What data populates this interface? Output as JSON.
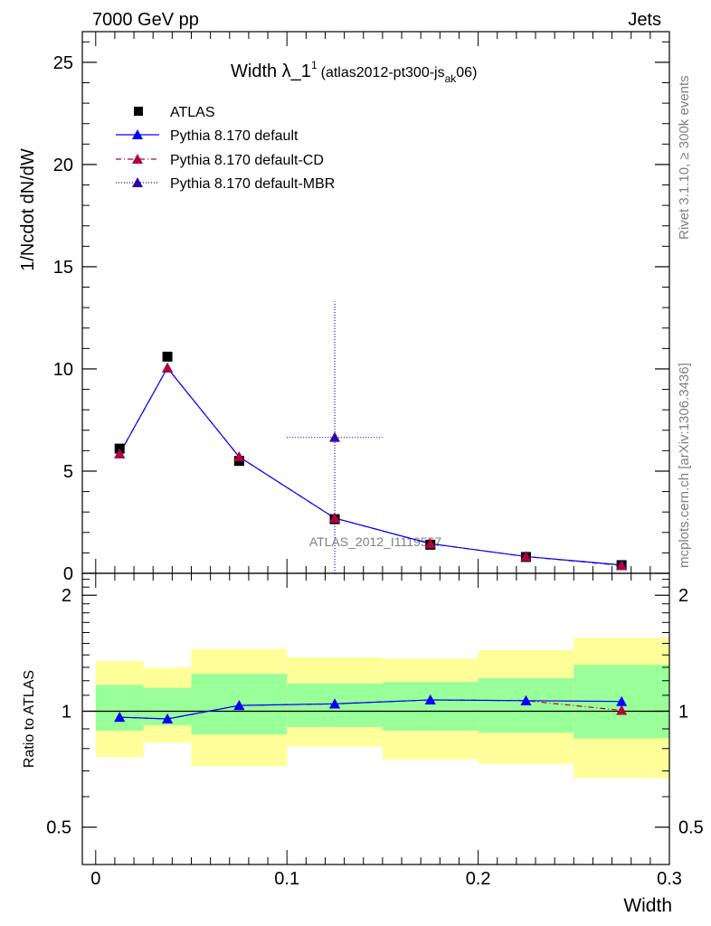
{
  "header": {
    "left": "7000 GeV pp",
    "right": "Jets"
  },
  "side": {
    "rivet": "Rivet 3.1.10, ≥ 300k events",
    "mcplots": "mcplots.cern.ch [arXiv:1306.3436]"
  },
  "watermark": "ATLAS_2012_I1119557",
  "chart_data": [
    {
      "type": "scatter",
      "title": "Width λ_1¹ (atlas2012-pt300-js_ak 06)",
      "title_parts": {
        "main": "Width λ_1",
        "sup": "1",
        "paren": "(atlas2012-pt300-js",
        "sub": "ak",
        "tail": "06)"
      },
      "ylabel": "1/Ncdot dN/dW",
      "xlabel": "Width",
      "xlim": [
        -0.007,
        0.3
      ],
      "ylim": [
        0,
        26.5
      ],
      "yticks": [
        0,
        5,
        10,
        15,
        20,
        25
      ],
      "ytick_labels": [
        "0",
        "5",
        "10",
        "15",
        "20",
        "25"
      ],
      "xticks": [
        0,
        0.1,
        0.2,
        0.3
      ],
      "xtick_labels": [
        "0",
        "0.1",
        "0.2",
        "0.3"
      ],
      "legend": [
        "ATLAS",
        "Pythia 8.170 default",
        "Pythia 8.170 default-CD",
        "Pythia 8.170 default-MBR"
      ],
      "legend_position": "top-left",
      "series": [
        {
          "name": "ATLAS",
          "color": "#000000",
          "marker": "square",
          "x": [
            0.0125,
            0.0375,
            0.075,
            0.125,
            0.175,
            0.225,
            0.275
          ],
          "values": [
            6.1,
            10.6,
            5.5,
            2.65,
            1.4,
            0.8,
            0.4
          ]
        },
        {
          "name": "Pythia 8.170 default",
          "color": "#0000ff",
          "marker": "triangle",
          "line": "solid",
          "x": [
            0.0125,
            0.0375,
            0.075,
            0.125,
            0.175,
            0.225,
            0.275
          ],
          "values": [
            5.85,
            10.05,
            5.7,
            2.7,
            1.45,
            0.82,
            0.41
          ]
        },
        {
          "name": "Pythia 8.170 default-CD",
          "color": "#b0003a",
          "marker": "triangle",
          "line": "dashdot",
          "x": [
            0.0125,
            0.0375,
            0.075,
            0.125,
            0.175,
            0.225,
            0.275
          ],
          "values": [
            5.85,
            10.05,
            5.7,
            2.7,
            1.45,
            0.82,
            0.38
          ]
        },
        {
          "name": "Pythia 8.170 default-MBR",
          "color": "#3300aa",
          "marker": "triangle",
          "line": "dotted",
          "x": [
            0.125
          ],
          "values": [
            6.65
          ],
          "xerr": [
            [
              0.1,
              0.15
            ]
          ],
          "yerr": [
            [
              0,
              13.3
            ]
          ]
        }
      ]
    },
    {
      "type": "line",
      "ylabel": "Ratio to ATLAS",
      "xlabel": "Width",
      "xlim": [
        -0.007,
        0.3
      ],
      "ylim": [
        0.4,
        2.28
      ],
      "yscale": "log",
      "yticks": [
        0.5,
        1,
        2
      ],
      "ytick_labels": [
        "0.5",
        "1",
        "2"
      ],
      "xticks": [
        0,
        0.1,
        0.2,
        0.3
      ],
      "xtick_labels": [
        "0",
        "0.1",
        "0.2",
        "0.3"
      ],
      "bands": [
        {
          "x0": 0.0,
          "x1": 0.025,
          "yellow": [
            0.76,
            1.35
          ],
          "green": [
            0.89,
            1.17
          ]
        },
        {
          "x0": 0.025,
          "x1": 0.05,
          "yellow": [
            0.83,
            1.3
          ],
          "green": [
            0.92,
            1.15
          ]
        },
        {
          "x0": 0.05,
          "x1": 0.1,
          "yellow": [
            0.72,
            1.45
          ],
          "green": [
            0.87,
            1.25
          ]
        },
        {
          "x0": 0.1,
          "x1": 0.15,
          "yellow": [
            0.81,
            1.38
          ],
          "green": [
            0.91,
            1.18
          ]
        },
        {
          "x0": 0.15,
          "x1": 0.2,
          "yellow": [
            0.75,
            1.37
          ],
          "green": [
            0.89,
            1.19
          ]
        },
        {
          "x0": 0.2,
          "x1": 0.25,
          "yellow": [
            0.73,
            1.44
          ],
          "green": [
            0.88,
            1.22
          ]
        },
        {
          "x0": 0.25,
          "x1": 0.3,
          "yellow": [
            0.67,
            1.55
          ],
          "green": [
            0.85,
            1.32
          ]
        }
      ],
      "series": [
        {
          "name": "Pythia 8.170 default",
          "color": "#0000ff",
          "line": "solid",
          "x": [
            0.0125,
            0.0375,
            0.075,
            0.125,
            0.175,
            0.225,
            0.275
          ],
          "values": [
            0.965,
            0.955,
            1.035,
            1.045,
            1.07,
            1.065,
            1.06
          ]
        },
        {
          "name": "Pythia 8.170 default-CD",
          "color": "#b0003a",
          "line": "dashdot",
          "x": [
            0.0125,
            0.0375,
            0.075,
            0.125,
            0.175,
            0.225,
            0.275
          ],
          "values": [
            0.965,
            0.955,
            1.035,
            1.045,
            1.07,
            1.065,
            1.005
          ]
        }
      ]
    }
  ]
}
